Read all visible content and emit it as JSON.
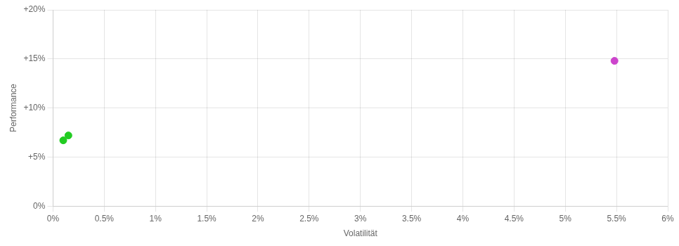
{
  "chart_data": {
    "type": "scatter",
    "xlabel": "Volatilität",
    "ylabel": "Performance",
    "series": [
      {
        "color": "#22cc22",
        "x": [
          0.0015,
          0.001
        ],
        "values": [
          0.072,
          0.067
        ]
      },
      {
        "color": "#cc44cc",
        "x": [
          0.0548
        ],
        "values": [
          0.148
        ]
      }
    ],
    "xlim": [
      0,
      0.06
    ],
    "ylim": [
      0,
      0.2
    ],
    "xticks": [
      {
        "value": 0,
        "label": "0%"
      },
      {
        "value": 0.005,
        "label": "0.5%"
      },
      {
        "value": 0.01,
        "label": "1%"
      },
      {
        "value": 0.015,
        "label": "1.5%"
      },
      {
        "value": 0.02,
        "label": "2%"
      },
      {
        "value": 0.025,
        "label": "2.5%"
      },
      {
        "value": 0.03,
        "label": "3%"
      },
      {
        "value": 0.035,
        "label": "3.5%"
      },
      {
        "value": 0.04,
        "label": "4%"
      },
      {
        "value": 0.045,
        "label": "4.5%"
      },
      {
        "value": 0.05,
        "label": "5%"
      },
      {
        "value": 0.055,
        "label": "5.5%"
      },
      {
        "value": 0.06,
        "label": "6%"
      }
    ],
    "yticks": [
      {
        "value": 0,
        "label": "0%"
      },
      {
        "value": 0.05,
        "label": "+5%"
      },
      {
        "value": 0.1,
        "label": "+10%"
      },
      {
        "value": 0.15,
        "label": "+15%"
      },
      {
        "value": 0.2,
        "label": "+20%"
      }
    ],
    "grid": true
  }
}
